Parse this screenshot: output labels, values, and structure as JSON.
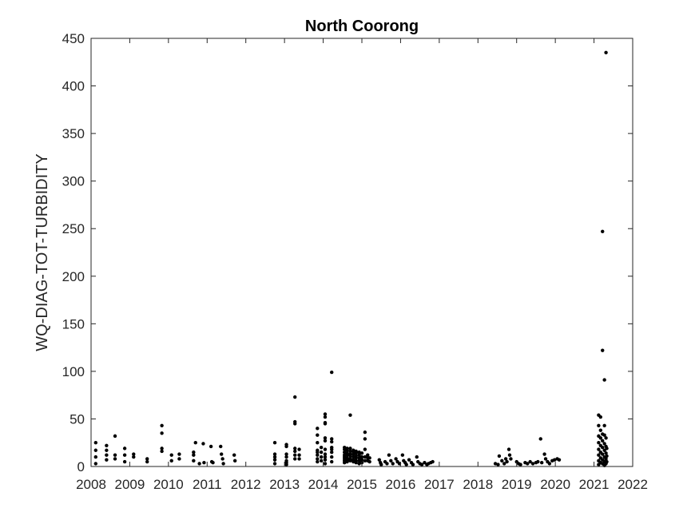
{
  "chart_data": {
    "type": "scatter",
    "title": "North Coorong",
    "xlabel": "",
    "ylabel": "WQ-DIAG-TOT-TURBIDITY",
    "xlim": [
      2008,
      2022
    ],
    "ylim": [
      0,
      450
    ],
    "xticks": [
      2008,
      2009,
      2010,
      2011,
      2012,
      2013,
      2014,
      2015,
      2016,
      2017,
      2018,
      2019,
      2020,
      2021,
      2022
    ],
    "yticks": [
      0,
      50,
      100,
      150,
      200,
      250,
      300,
      350,
      400,
      450
    ],
    "grid": false,
    "legend": "none",
    "marker_color": "#000000",
    "points": [
      [
        2008.12,
        25
      ],
      [
        2008.12,
        17
      ],
      [
        2008.12,
        10
      ],
      [
        2008.12,
        3
      ],
      [
        2008.4,
        22
      ],
      [
        2008.4,
        17
      ],
      [
        2008.4,
        12
      ],
      [
        2008.4,
        7
      ],
      [
        2008.62,
        32
      ],
      [
        2008.62,
        12
      ],
      [
        2008.62,
        8
      ],
      [
        2008.87,
        19
      ],
      [
        2008.87,
        12
      ],
      [
        2008.87,
        5
      ],
      [
        2009.1,
        13
      ],
      [
        2009.1,
        10
      ],
      [
        2009.45,
        8
      ],
      [
        2009.45,
        5
      ],
      [
        2009.83,
        43
      ],
      [
        2009.83,
        35
      ],
      [
        2009.83,
        19
      ],
      [
        2009.83,
        16
      ],
      [
        2010.08,
        12
      ],
      [
        2010.08,
        6
      ],
      [
        2010.28,
        13
      ],
      [
        2010.28,
        8
      ],
      [
        2010.65,
        15
      ],
      [
        2010.65,
        12
      ],
      [
        2010.65,
        6
      ],
      [
        2010.7,
        25
      ],
      [
        2010.8,
        3
      ],
      [
        2010.9,
        24
      ],
      [
        2010.92,
        4
      ],
      [
        2011.1,
        21
      ],
      [
        2011.12,
        5
      ],
      [
        2011.15,
        4
      ],
      [
        2011.35,
        21
      ],
      [
        2011.37,
        13
      ],
      [
        2011.4,
        8
      ],
      [
        2011.42,
        3
      ],
      [
        2011.7,
        12
      ],
      [
        2011.72,
        6
      ],
      [
        2012.75,
        25
      ],
      [
        2012.75,
        13
      ],
      [
        2012.75,
        10
      ],
      [
        2012.75,
        7
      ],
      [
        2012.75,
        3
      ],
      [
        2013.05,
        23
      ],
      [
        2013.05,
        21
      ],
      [
        2013.05,
        13
      ],
      [
        2013.05,
        10
      ],
      [
        2013.05,
        6
      ],
      [
        2013.05,
        4
      ],
      [
        2013.05,
        2
      ],
      [
        2013.27,
        73
      ],
      [
        2013.27,
        47
      ],
      [
        2013.27,
        45
      ],
      [
        2013.27,
        19
      ],
      [
        2013.27,
        16
      ],
      [
        2013.27,
        12
      ],
      [
        2013.27,
        8
      ],
      [
        2013.38,
        18
      ],
      [
        2013.38,
        12
      ],
      [
        2013.38,
        8
      ],
      [
        2013.85,
        40
      ],
      [
        2013.85,
        33
      ],
      [
        2013.85,
        25
      ],
      [
        2013.85,
        17
      ],
      [
        2013.85,
        15
      ],
      [
        2013.85,
        12
      ],
      [
        2013.85,
        8
      ],
      [
        2013.85,
        5
      ],
      [
        2013.95,
        20
      ],
      [
        2013.95,
        15
      ],
      [
        2013.95,
        10
      ],
      [
        2013.95,
        6
      ],
      [
        2014.05,
        55
      ],
      [
        2014.05,
        52
      ],
      [
        2014.05,
        46
      ],
      [
        2014.05,
        45
      ],
      [
        2014.05,
        30
      ],
      [
        2014.05,
        27
      ],
      [
        2014.05,
        18
      ],
      [
        2014.05,
        13
      ],
      [
        2014.05,
        10
      ],
      [
        2014.05,
        7
      ],
      [
        2014.05,
        3
      ],
      [
        2014.22,
        99
      ],
      [
        2014.22,
        29
      ],
      [
        2014.22,
        26
      ],
      [
        2014.22,
        20
      ],
      [
        2014.22,
        18
      ],
      [
        2014.22,
        15
      ],
      [
        2014.22,
        10
      ],
      [
        2014.22,
        5
      ],
      [
        2014.55,
        20
      ],
      [
        2014.55,
        18
      ],
      [
        2014.55,
        15
      ],
      [
        2014.55,
        12
      ],
      [
        2014.55,
        10
      ],
      [
        2014.55,
        8
      ],
      [
        2014.55,
        6
      ],
      [
        2014.55,
        4
      ],
      [
        2014.62,
        19
      ],
      [
        2014.62,
        17
      ],
      [
        2014.62,
        14
      ],
      [
        2014.62,
        12
      ],
      [
        2014.62,
        9
      ],
      [
        2014.62,
        7
      ],
      [
        2014.62,
        5
      ],
      [
        2014.7,
        54
      ],
      [
        2014.7,
        19
      ],
      [
        2014.7,
        16
      ],
      [
        2014.7,
        13
      ],
      [
        2014.7,
        11
      ],
      [
        2014.7,
        8
      ],
      [
        2014.7,
        6
      ],
      [
        2014.78,
        17
      ],
      [
        2014.78,
        15
      ],
      [
        2014.78,
        13
      ],
      [
        2014.78,
        10
      ],
      [
        2014.78,
        7
      ],
      [
        2014.78,
        5
      ],
      [
        2014.85,
        16
      ],
      [
        2014.85,
        14
      ],
      [
        2014.85,
        11
      ],
      [
        2014.85,
        9
      ],
      [
        2014.85,
        6
      ],
      [
        2014.85,
        4
      ],
      [
        2014.93,
        15
      ],
      [
        2014.93,
        12
      ],
      [
        2014.93,
        9
      ],
      [
        2014.93,
        6
      ],
      [
        2014.93,
        3
      ],
      [
        2015.0,
        14
      ],
      [
        2015.0,
        10
      ],
      [
        2015.0,
        7
      ],
      [
        2015.0,
        4
      ],
      [
        2015.08,
        36
      ],
      [
        2015.08,
        29
      ],
      [
        2015.08,
        18
      ],
      [
        2015.08,
        10
      ],
      [
        2015.08,
        6
      ],
      [
        2015.15,
        12
      ],
      [
        2015.15,
        9
      ],
      [
        2015.15,
        6
      ],
      [
        2015.2,
        9
      ],
      [
        2015.2,
        5
      ],
      [
        2015.45,
        7
      ],
      [
        2015.48,
        4
      ],
      [
        2015.5,
        2
      ],
      [
        2015.6,
        5
      ],
      [
        2015.65,
        3
      ],
      [
        2015.7,
        12
      ],
      [
        2015.75,
        6
      ],
      [
        2015.8,
        3
      ],
      [
        2015.88,
        8
      ],
      [
        2015.92,
        5
      ],
      [
        2015.97,
        3
      ],
      [
        2016.05,
        12
      ],
      [
        2016.08,
        6
      ],
      [
        2016.12,
        4
      ],
      [
        2016.15,
        2
      ],
      [
        2016.22,
        7
      ],
      [
        2016.28,
        4
      ],
      [
        2016.32,
        2
      ],
      [
        2016.42,
        10
      ],
      [
        2016.45,
        5
      ],
      [
        2016.5,
        3
      ],
      [
        2016.55,
        2
      ],
      [
        2016.62,
        4
      ],
      [
        2016.68,
        2
      ],
      [
        2016.72,
        3
      ],
      [
        2016.78,
        4
      ],
      [
        2016.83,
        5
      ],
      [
        2018.45,
        3
      ],
      [
        2018.52,
        2
      ],
      [
        2018.55,
        11
      ],
      [
        2018.62,
        6
      ],
      [
        2018.68,
        3
      ],
      [
        2018.72,
        8
      ],
      [
        2018.75,
        5
      ],
      [
        2018.8,
        18
      ],
      [
        2018.82,
        12
      ],
      [
        2018.85,
        8
      ],
      [
        2019.0,
        5
      ],
      [
        2019.05,
        3
      ],
      [
        2019.1,
        2
      ],
      [
        2019.22,
        4
      ],
      [
        2019.28,
        3
      ],
      [
        2019.35,
        5
      ],
      [
        2019.42,
        3
      ],
      [
        2019.5,
        4
      ],
      [
        2019.55,
        5
      ],
      [
        2019.62,
        29
      ],
      [
        2019.65,
        4
      ],
      [
        2019.72,
        13
      ],
      [
        2019.75,
        8
      ],
      [
        2019.8,
        5
      ],
      [
        2019.85,
        3
      ],
      [
        2019.92,
        6
      ],
      [
        2019.98,
        7
      ],
      [
        2020.05,
        8
      ],
      [
        2020.1,
        7
      ],
      [
        2021.12,
        54
      ],
      [
        2021.12,
        43
      ],
      [
        2021.12,
        32
      ],
      [
        2021.12,
        25
      ],
      [
        2021.12,
        18
      ],
      [
        2021.12,
        12
      ],
      [
        2021.12,
        6
      ],
      [
        2021.12,
        2
      ],
      [
        2021.17,
        52
      ],
      [
        2021.17,
        38
      ],
      [
        2021.17,
        30
      ],
      [
        2021.17,
        22
      ],
      [
        2021.17,
        15
      ],
      [
        2021.17,
        9
      ],
      [
        2021.17,
        4
      ],
      [
        2021.22,
        247
      ],
      [
        2021.22,
        122
      ],
      [
        2021.22,
        34
      ],
      [
        2021.22,
        27
      ],
      [
        2021.22,
        20
      ],
      [
        2021.22,
        13
      ],
      [
        2021.22,
        7
      ],
      [
        2021.22,
        3
      ],
      [
        2021.27,
        91
      ],
      [
        2021.27,
        43
      ],
      [
        2021.27,
        33
      ],
      [
        2021.27,
        24
      ],
      [
        2021.27,
        17
      ],
      [
        2021.27,
        10
      ],
      [
        2021.27,
        5
      ],
      [
        2021.27,
        1
      ],
      [
        2021.31,
        435
      ],
      [
        2021.31,
        30
      ],
      [
        2021.31,
        21
      ],
      [
        2021.31,
        14
      ],
      [
        2021.31,
        8
      ],
      [
        2021.31,
        3
      ],
      [
        2021.33,
        19
      ],
      [
        2021.33,
        11
      ],
      [
        2021.33,
        5
      ]
    ]
  }
}
